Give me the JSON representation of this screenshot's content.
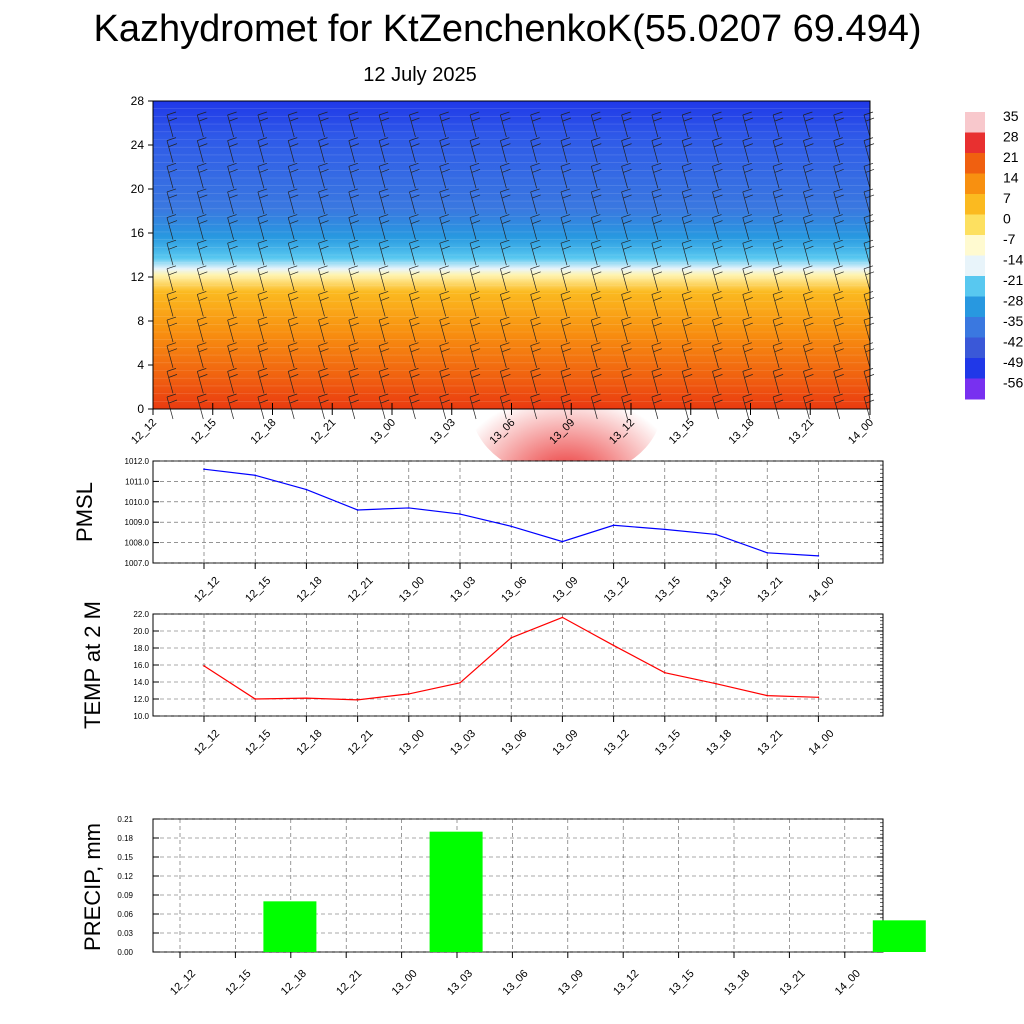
{
  "header": {
    "title": "Kazhydromet for KtZenchenkoK(55.0207 69.494)",
    "subtitle": "12 July 2025"
  },
  "chart_data": [
    {
      "type": "heatmap",
      "panel": "upper-air cross-section",
      "x_labels": [
        "12_12",
        "12_15",
        "12_18",
        "12_21",
        "13_00",
        "13_03",
        "13_06",
        "13_09",
        "13_12",
        "13_15",
        "13_18",
        "13_21",
        "14_00"
      ],
      "yticks": [
        0,
        4,
        8,
        12,
        16,
        20,
        24,
        28
      ],
      "ylim": [
        0,
        28
      ],
      "colorbar": {
        "labels": [
          "35",
          "28",
          "21",
          "14",
          "7",
          "0",
          "-7",
          "-14",
          "-21",
          "-28",
          "-35",
          "-42",
          "-49",
          "-56"
        ],
        "colors": [
          "#f8c8cc",
          "#e83030",
          "#f06010",
          "#f89010",
          "#fbba20",
          "#fde060",
          "#fffad0",
          "#e8f4fa",
          "#58c8f0",
          "#2898e0",
          "#3a78e0",
          "#3a58d8",
          "#2038e8",
          "#7830f0"
        ]
      },
      "wind_barbs": true
    },
    {
      "type": "line",
      "ylabel": "PMSL",
      "categories": [
        "12_12",
        "12_15",
        "12_18",
        "12_21",
        "13_00",
        "13_03",
        "13_06",
        "13_09",
        "13_12",
        "13_15",
        "13_18",
        "13_21",
        "14_00"
      ],
      "values": [
        1011.6,
        1011.3,
        1010.6,
        1009.6,
        1009.7,
        1009.4,
        1008.8,
        1008.05,
        1008.85,
        1008.65,
        1008.4,
        1007.5,
        1007.35
      ],
      "ylim": [
        1007.0,
        1012.0
      ],
      "yticks": [
        "1007.0",
        "1008.0",
        "1009.0",
        "1010.0",
        "1011.0",
        "1012.0"
      ],
      "color": "#0000ff",
      "grid": true
    },
    {
      "type": "line",
      "ylabel": "TEMP at 2 M",
      "categories": [
        "12_12",
        "12_15",
        "12_18",
        "12_21",
        "13_00",
        "13_03",
        "13_06",
        "13_09",
        "13_12",
        "13_15",
        "13_18",
        "13_21",
        "14_00"
      ],
      "values": [
        15.9,
        12.0,
        12.1,
        11.9,
        12.6,
        13.9,
        19.2,
        21.6,
        18.3,
        15.1,
        13.8,
        12.4,
        12.2
      ],
      "ylim": [
        10.0,
        22.0
      ],
      "yticks": [
        "10.0",
        "12.0",
        "14.0",
        "16.0",
        "18.0",
        "20.0",
        "22.0"
      ],
      "color": "#ff0000",
      "grid": true
    },
    {
      "type": "bar",
      "ylabel": "PRECIP, mm",
      "categories": [
        "12_12",
        "12_15",
        "12_18",
        "12_21",
        "13_00",
        "13_03",
        "13_06",
        "13_09",
        "13_12",
        "13_15",
        "13_18",
        "13_21",
        "14_00"
      ],
      "values": [
        0,
        0.08,
        0,
        0,
        0.19,
        0,
        0,
        0,
        0,
        0,
        0,
        0,
        0.05
      ],
      "ylim": [
        0,
        0.21
      ],
      "yticks": [
        "0.00",
        "0.03",
        "0.06",
        "0.09",
        "0.12",
        "0.15",
        "0.18",
        "0.21"
      ],
      "color": "#00ff00",
      "grid": true
    }
  ]
}
